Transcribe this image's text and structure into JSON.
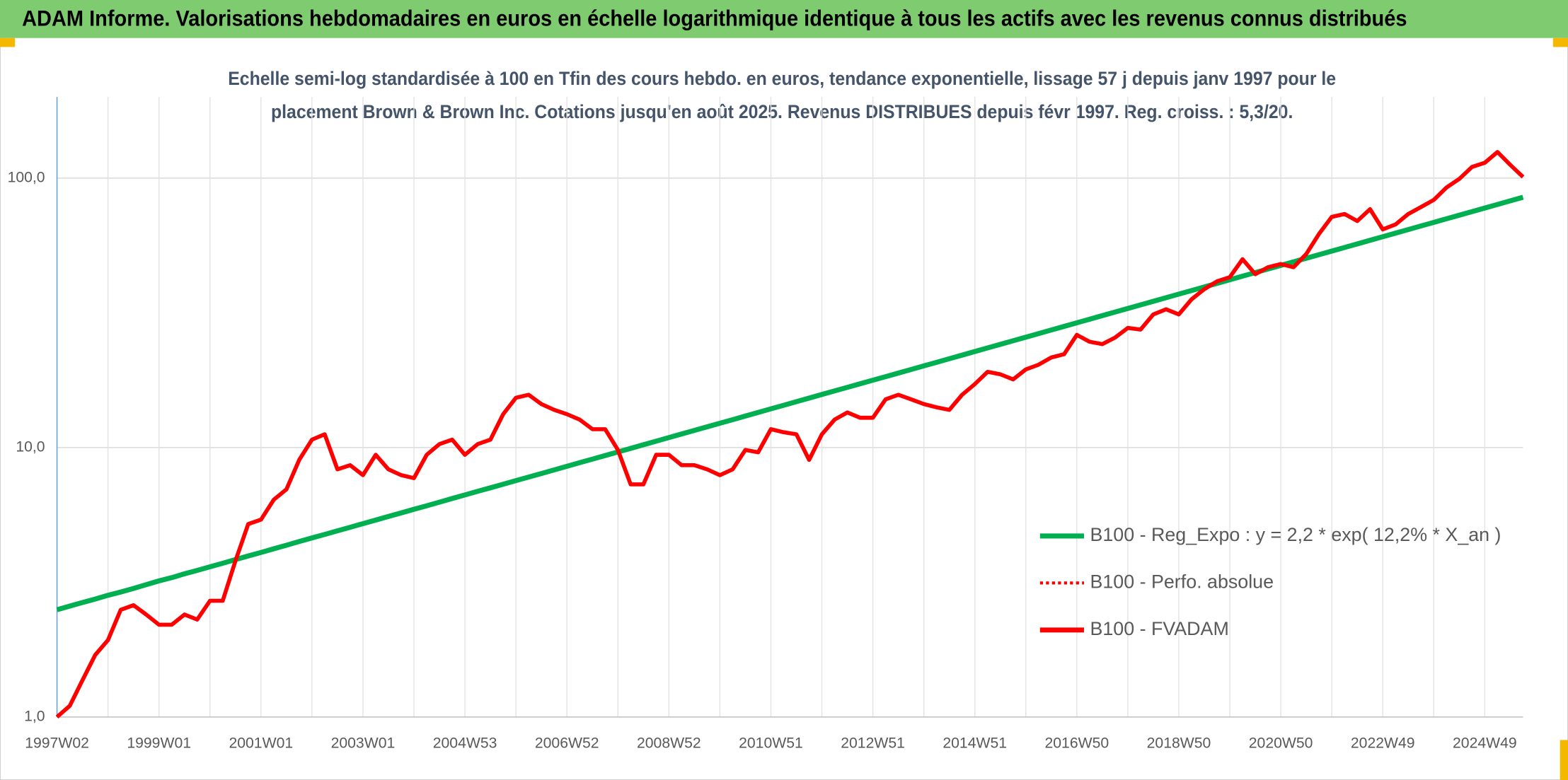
{
  "chart_data": {
    "type": "line",
    "title": "ADAM Informe. Valorisations hebdomadaires en euros en échelle logarithmique identique à tous les actifs avec les revenus connus distribués",
    "subtitle": [
      "Echelle semi-log standardisée à 100 en Tfin des cours hebdo. en euros, tendance exponentielle, lissage 57 j depuis janv 1997 pour le",
      "placement Brown & Brown Inc. Cotations jusqu'en août 2025. Revenus DISTRIBUES depuis févr 1997. Reg. croiss. : 5,3/20."
    ],
    "log_scale": true,
    "grid": true,
    "legend": "lower right",
    "ylim": [
      1,
      200
    ],
    "yticks": [
      {
        "value": 1,
        "label": "1,0"
      },
      {
        "value": 10,
        "label": "10,0"
      },
      {
        "value": 100,
        "label": "100,0"
      }
    ],
    "categories": [
      "1997W02",
      null,
      null,
      null,
      null,
      null,
      null,
      null,
      "1999W01",
      null,
      null,
      null,
      null,
      null,
      null,
      null,
      "2001W01",
      null,
      null,
      null,
      null,
      null,
      null,
      null,
      "2003W01",
      null,
      null,
      null,
      null,
      null,
      null,
      null,
      "2004W53",
      null,
      null,
      null,
      null,
      null,
      null,
      null,
      "2006W52",
      null,
      null,
      null,
      null,
      null,
      null,
      null,
      "2008W52",
      null,
      null,
      null,
      null,
      null,
      null,
      null,
      "2010W51",
      null,
      null,
      null,
      null,
      null,
      null,
      null,
      "2012W51",
      null,
      null,
      null,
      null,
      null,
      null,
      null,
      "2014W51",
      null,
      null,
      null,
      null,
      null,
      null,
      null,
      "2016W50",
      null,
      null,
      null,
      null,
      null,
      null,
      null,
      "2018W50",
      null,
      null,
      null,
      null,
      null,
      null,
      null,
      "2020W50",
      null,
      null,
      null,
      null,
      null,
      null,
      null,
      "2022W49",
      null,
      null,
      null,
      null,
      null,
      null,
      null,
      "2024W49",
      null,
      null,
      null
    ],
    "series": [
      {
        "name": "B100 - Reg_Expo : y = 2,2 * exp( 12,2% *  X_an )",
        "color": "#00b050",
        "style": "solid",
        "values": [
          2.5,
          2.58,
          2.66,
          2.74,
          2.83,
          2.91,
          3.0,
          3.1,
          3.2,
          3.29,
          3.4,
          3.5,
          3.61,
          3.72,
          3.84,
          3.96,
          4.08,
          4.21,
          4.34,
          4.48,
          4.62,
          4.76,
          4.91,
          5.06,
          5.22,
          5.38,
          5.55,
          5.72,
          5.9,
          6.08,
          6.27,
          6.47,
          6.67,
          6.88,
          7.09,
          7.31,
          7.54,
          7.77,
          8.01,
          8.26,
          8.52,
          8.79,
          9.06,
          9.34,
          9.63,
          9.93,
          10.24,
          10.56,
          10.89,
          11.23,
          11.58,
          11.94,
          12.31,
          12.69,
          13.09,
          13.5,
          13.92,
          14.35,
          14.8,
          15.26,
          15.74,
          16.23,
          16.73,
          17.25,
          17.78,
          18.33,
          18.9,
          19.49,
          20.1,
          20.72,
          21.37,
          22.03,
          22.72,
          23.43,
          24.16,
          24.91,
          25.68,
          26.48,
          27.31,
          28.16,
          29.04,
          29.94,
          30.88,
          31.84,
          32.83,
          33.85,
          34.9,
          35.99,
          37.11,
          38.26,
          39.46,
          40.68,
          41.95,
          43.26,
          44.6,
          45.99,
          47.42,
          48.9,
          50.42,
          51.99,
          53.6,
          55.27,
          56.99,
          58.77,
          60.6,
          62.48,
          64.43,
          66.44,
          68.5,
          70.64,
          72.83,
          75.1,
          77.44,
          79.85,
          82.34,
          84.9
        ]
      },
      {
        "name": "B100 - Perfo. absolue",
        "color": "#ff0000",
        "style": "dotted",
        "values": [
          1.0,
          1.1,
          1.37,
          1.7,
          1.93,
          2.5,
          2.6,
          2.4,
          2.2,
          2.2,
          2.4,
          2.3,
          2.7,
          2.7,
          3.8,
          5.2,
          5.4,
          6.4,
          7.0,
          9.0,
          10.7,
          11.2,
          8.3,
          8.6,
          7.9,
          9.4,
          8.3,
          7.9,
          7.7,
          9.4,
          10.3,
          10.7,
          9.4,
          10.3,
          10.7,
          13.3,
          15.3,
          15.7,
          14.5,
          13.8,
          13.3,
          12.7,
          11.7,
          11.7,
          9.8,
          7.3,
          7.3,
          9.4,
          9.4,
          8.6,
          8.6,
          8.3,
          7.9,
          8.3,
          9.8,
          9.6,
          11.7,
          11.4,
          11.2,
          9.0,
          11.2,
          12.7,
          13.5,
          12.9,
          12.9,
          15.1,
          15.7,
          15.1,
          14.5,
          14.1,
          13.8,
          15.7,
          17.2,
          19.1,
          18.7,
          17.9,
          19.5,
          20.3,
          21.6,
          22.2,
          26.2,
          24.7,
          24.2,
          25.6,
          27.8,
          27.4,
          31.2,
          32.6,
          31.2,
          35.5,
          38.7,
          41.4,
          42.9,
          50.0,
          44.0,
          46.7,
          48.0,
          46.7,
          52.3,
          62.1,
          71.8,
          73.6,
          69.3,
          76.7,
          64.5,
          67.3,
          73.6,
          78.1,
          83.0,
          92.3,
          99.3,
          110,
          114,
          125,
          112,
          101
        ]
      },
      {
        "name": "B100 - FVADAM",
        "color": "#ff0000",
        "style": "solid",
        "values": [
          1.0,
          1.1,
          1.37,
          1.7,
          1.93,
          2.5,
          2.6,
          2.4,
          2.2,
          2.2,
          2.4,
          2.3,
          2.7,
          2.7,
          3.8,
          5.2,
          5.4,
          6.4,
          7.0,
          9.0,
          10.7,
          11.2,
          8.3,
          8.6,
          7.9,
          9.4,
          8.3,
          7.9,
          7.7,
          9.4,
          10.3,
          10.7,
          9.4,
          10.3,
          10.7,
          13.3,
          15.3,
          15.7,
          14.5,
          13.8,
          13.3,
          12.7,
          11.7,
          11.7,
          9.8,
          7.3,
          7.3,
          9.4,
          9.4,
          8.6,
          8.6,
          8.3,
          7.9,
          8.3,
          9.8,
          9.6,
          11.7,
          11.4,
          11.2,
          9.0,
          11.2,
          12.7,
          13.5,
          12.9,
          12.9,
          15.1,
          15.7,
          15.1,
          14.5,
          14.1,
          13.8,
          15.7,
          17.2,
          19.1,
          18.7,
          17.9,
          19.5,
          20.3,
          21.6,
          22.2,
          26.2,
          24.7,
          24.2,
          25.6,
          27.8,
          27.4,
          31.2,
          32.6,
          31.2,
          35.5,
          38.7,
          41.4,
          42.9,
          50.0,
          44.0,
          46.7,
          48.0,
          46.7,
          52.3,
          62.1,
          71.8,
          73.6,
          69.3,
          76.7,
          64.5,
          67.3,
          73.6,
          78.1,
          83.0,
          92.3,
          99.3,
          110,
          114,
          125,
          112,
          101
        ]
      }
    ]
  }
}
